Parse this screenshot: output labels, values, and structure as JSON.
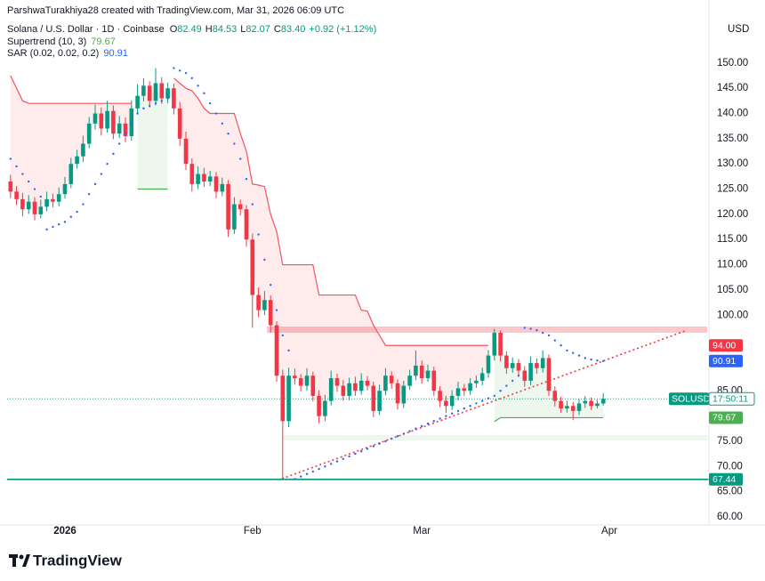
{
  "header": {
    "credit": "ParshwaTurakhiya28 created with TradingView.com, Mar 31, 2026 06:09 UTC",
    "symbol": "Solana / U.S. Dollar · 1D · Coinbase",
    "ohlc": [
      {
        "key": "O",
        "value": "82.49"
      },
      {
        "key": "H",
        "value": "84.53"
      },
      {
        "key": "L",
        "value": "82.07"
      },
      {
        "key": "C",
        "value": "83.40"
      }
    ],
    "change": "+0.92 (+1.12%)",
    "currency": "USD"
  },
  "footer": {
    "brand": "TradingView"
  },
  "chart_data": {
    "type": "candlestick",
    "categories": [
      null,
      null,
      null,
      null,
      null,
      null,
      null,
      null,
      null,
      "2026",
      null,
      null,
      null,
      null,
      null,
      null,
      null,
      null,
      null,
      null,
      null,
      null,
      null,
      null,
      null,
      null,
      null,
      null,
      null,
      null,
      null,
      null,
      null,
      null,
      null,
      null,
      null,
      null,
      null,
      null,
      "Feb",
      null,
      null,
      null,
      null,
      null,
      null,
      null,
      null,
      null,
      null,
      null,
      null,
      null,
      null,
      null,
      null,
      null,
      null,
      null,
      null,
      null,
      null,
      null,
      null,
      null,
      null,
      null,
      "Mar",
      null,
      null,
      null,
      null,
      null,
      null,
      null,
      null,
      null,
      null,
      null,
      null,
      null,
      null,
      null,
      null,
      null,
      null,
      null,
      null,
      null,
      null,
      null,
      null,
      null,
      null,
      null,
      null,
      null,
      null,
      "Apr"
    ],
    "open": [
      126.5,
      124.5,
      123,
      121,
      122.5,
      120,
      121.5,
      123,
      122.5,
      124,
      126,
      130,
      131.5,
      134,
      138,
      140,
      137,
      140.5,
      136,
      138,
      135.5,
      141,
      143.5,
      145.5,
      142.5,
      146,
      143,
      145,
      141,
      135,
      130,
      126,
      128,
      126.5,
      127.5,
      124.5,
      126,
      117,
      122,
      121,
      115,
      104,
      101,
      103,
      98,
      88,
      79,
      88,
      87.5,
      86,
      88,
      84,
      80,
      83,
      87.5,
      86,
      84,
      86.5,
      85,
      87,
      86,
      81,
      85,
      88,
      86.5,
      82.5,
      86,
      88,
      90,
      87.5,
      89,
      85,
      83,
      82,
      84,
      85.5,
      85,
      86.5,
      87,
      88.5,
      92,
      96.5,
      92,
      89.5,
      90.5,
      89,
      87,
      90.5,
      89.5,
      91.5,
      85,
      83,
      81.5,
      82,
      81,
      82.5,
      83,
      82,
      82.49,
      null
    ],
    "high": [
      127.8,
      125.6,
      124.2,
      123.8,
      123.4,
      122.9,
      124.5,
      124.1,
      125.3,
      127.4,
      131.2,
      132.8,
      135.6,
      139.3,
      141.8,
      141.2,
      142.5,
      141.6,
      139.5,
      139.2,
      142.6,
      145.8,
      147,
      146.4,
      149,
      147.2,
      146.1,
      145.9,
      142.3,
      136.4,
      131.1,
      129.5,
      129.2,
      128.6,
      128.4,
      127.3,
      126.8,
      123.4,
      122.9,
      121.8,
      116.2,
      105.5,
      104.8,
      103.9,
      98.8,
      89.2,
      89.6,
      89.4,
      88.3,
      89.5,
      88.8,
      85.1,
      84.2,
      89,
      88.4,
      87.1,
      87.6,
      87.8,
      88.5,
      87.9,
      86.8,
      86.2,
      89.5,
      88.9,
      87.3,
      87,
      89.2,
      93,
      91,
      90.2,
      89.8,
      85.9,
      84,
      85.1,
      86.8,
      86.4,
      87.5,
      88,
      89.6,
      93.1,
      97.3,
      97,
      92.8,
      91.6,
      91.3,
      89.9,
      91.8,
      91.4,
      93,
      92.2,
      85.9,
      83.8,
      83,
      82.8,
      83.4,
      84,
      83.7,
      83.2,
      84.53,
      null
    ],
    "low": [
      123.2,
      121.8,
      119.6,
      120.1,
      118.8,
      119.2,
      120.6,
      121.4,
      121.6,
      123.1,
      125.2,
      129.1,
      130.4,
      133.1,
      136.8,
      135.6,
      136.2,
      134.9,
      135.1,
      134.3,
      134.6,
      139.8,
      142.4,
      141.2,
      141.6,
      141.9,
      142,
      139.8,
      133.6,
      128.8,
      124.5,
      125,
      125.4,
      125.6,
      123.2,
      123.6,
      115.5,
      116.1,
      119.8,
      113.6,
      97.5,
      99.6,
      100,
      96.5,
      86.8,
      67.44,
      77.8,
      86.2,
      84.9,
      85,
      82.9,
      78.6,
      79,
      82.1,
      84.8,
      83,
      83.1,
      84,
      84.2,
      85.1,
      79.8,
      80.2,
      84.1,
      85.4,
      81.3,
      81.6,
      85.2,
      87.1,
      86.4,
      86.8,
      84,
      81.8,
      80.6,
      81.2,
      83.1,
      84,
      84.2,
      85.6,
      86.1,
      87.6,
      91,
      90.8,
      88.4,
      88.6,
      87.9,
      85.8,
      86.1,
      88.4,
      88.6,
      84,
      81.9,
      80.6,
      80.7,
      79.2,
      80.2,
      81.6,
      81.2,
      81.5,
      82.07,
      null
    ],
    "close": [
      124.5,
      123,
      121,
      122.5,
      120,
      121.5,
      123,
      122.5,
      124,
      126,
      130,
      131.5,
      134,
      138,
      140,
      137,
      140.5,
      136,
      138,
      135.5,
      141,
      143.5,
      145.5,
      142.5,
      146,
      143,
      145,
      141,
      135,
      130,
      126,
      128,
      126.5,
      127.5,
      124.5,
      126,
      117,
      122,
      121,
      115,
      104,
      101,
      103,
      98,
      88,
      79,
      88,
      87.5,
      86,
      88,
      84,
      80,
      83,
      87.5,
      86,
      84,
      86.5,
      85,
      87,
      86,
      81,
      85,
      88,
      86.5,
      82.5,
      86,
      88,
      90,
      87.5,
      89,
      85,
      83,
      82,
      84,
      85.5,
      85,
      86.5,
      87,
      88.5,
      92,
      96.5,
      92,
      89.5,
      90.5,
      89,
      87,
      90.5,
      89.5,
      91.5,
      85,
      83,
      81.5,
      82,
      81,
      82.5,
      83,
      82,
      82.49,
      83.4,
      null
    ],
    "up_color": "#089981",
    "down_color": "#f23645",
    "overlays": [
      {
        "name": "Supertrend (10, 3)",
        "value_label": "79.67",
        "up_color": "#4caf50",
        "down_color": "#f7525f",
        "values": [
          147.5,
          145,
          142.5,
          142,
          142,
          142,
          142,
          142,
          142,
          142,
          142,
          142,
          142,
          142,
          142,
          142,
          142,
          142,
          142,
          142,
          142,
          125,
          125,
          125,
          125,
          125,
          125,
          147,
          146,
          145,
          144.5,
          143,
          141,
          140,
          140,
          140,
          140,
          140,
          136,
          132.5,
          126,
          125.8,
          125.5,
          120,
          116.6,
          110,
          110,
          110,
          110,
          110,
          110,
          104,
          104,
          104,
          104,
          104,
          104,
          104,
          101,
          100.8,
          98,
          96,
          94,
          94,
          94,
          94,
          94,
          94,
          94,
          94,
          94,
          94,
          94,
          94,
          94,
          94,
          94,
          94,
          94,
          94,
          78.9,
          79.67,
          79.67,
          79.67,
          79.67,
          79.67,
          79.67,
          79.67,
          79.67,
          79.67,
          79.67,
          79.67,
          79.67,
          79.67,
          79.67,
          79.67,
          79.67,
          79.67,
          79.67,
          null
        ]
      },
      {
        "name": "SAR (0.02, 0.02, 0.2)",
        "value_label": "90.91",
        "color": "#2962ff",
        "values": [
          131,
          129.5,
          128,
          126.5,
          125,
          123.5,
          117,
          117.5,
          118,
          118.5,
          119.5,
          120.5,
          122,
          124,
          126,
          128,
          130,
          132,
          134,
          136,
          138,
          140,
          141,
          141.5,
          142,
          142.5,
          143,
          149,
          148.5,
          148,
          147,
          145.5,
          144,
          142,
          140,
          138,
          136,
          134,
          131,
          127,
          122,
          116,
          111,
          106,
          101,
          96,
          93,
          67.5,
          68,
          68.5,
          69,
          69.5,
          70,
          70.5,
          71,
          71.5,
          72,
          72.5,
          73,
          73.5,
          74,
          74.5,
          75,
          75.5,
          76,
          76.5,
          77,
          77.5,
          78,
          78.5,
          79,
          79.5,
          80,
          80.5,
          81,
          81.5,
          82,
          82.5,
          83,
          83.5,
          84,
          85,
          86,
          87,
          88,
          97.5,
          97.3,
          97,
          96.5,
          96,
          95,
          94,
          93,
          92.5,
          92,
          91.5,
          91.2,
          91,
          90.91,
          null
        ]
      }
    ],
    "price_tags": [
      {
        "value": 94,
        "label": "94.00",
        "color": "#f23645"
      },
      {
        "value": 90.91,
        "label": "90.91",
        "color": "#2962ff"
      },
      {
        "value": 83.4,
        "label": "SOLUSD",
        "countdown": "17:50:11",
        "color": "#089981"
      },
      {
        "value": 79.67,
        "label": "79.67",
        "color": "#4caf50"
      }
    ],
    "horizontal_line": {
      "value": 67.44,
      "label": "67.44",
      "color": "#089981"
    },
    "ylim": [
      58.4,
      162.5
    ],
    "yticks": [
      {
        "value": 150,
        "label": "150.00"
      },
      {
        "value": 145,
        "label": "145.00"
      },
      {
        "value": 140,
        "label": "140.00"
      },
      {
        "value": 135,
        "label": "135.00"
      },
      {
        "value": 130,
        "label": "130.00"
      },
      {
        "value": 125,
        "label": "125.00"
      },
      {
        "value": 120,
        "label": "120.00"
      },
      {
        "value": 115,
        "label": "115.00"
      },
      {
        "value": 110,
        "label": "110.00"
      },
      {
        "value": 105,
        "label": "105.00"
      },
      {
        "value": 100,
        "label": "100.00"
      },
      {
        "value": 85,
        "label": "85.00"
      },
      {
        "value": 75,
        "label": "75.00"
      },
      {
        "value": 70,
        "label": "70.00"
      },
      {
        "value": 65,
        "label": "65.00"
      },
      {
        "value": 60,
        "label": "60.00"
      }
    ]
  }
}
